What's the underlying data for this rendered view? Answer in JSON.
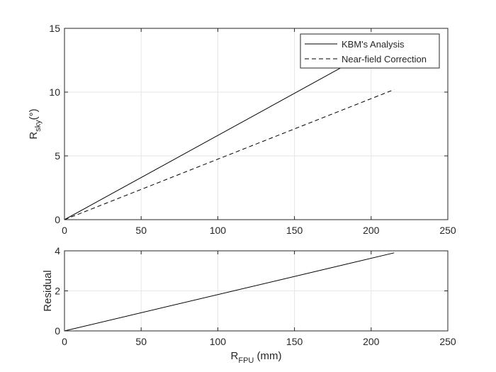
{
  "chart_data": [
    {
      "type": "line",
      "xlim": [
        0,
        250
      ],
      "ylim": [
        0,
        15
      ],
      "xticks": [
        0,
        50,
        100,
        150,
        200,
        250
      ],
      "yticks": [
        0,
        5,
        10,
        15
      ],
      "grid": true,
      "xlabel": "",
      "ylabel": {
        "main": "R",
        "sub": "sky",
        "unit": "(°)"
      },
      "legend": {
        "placement": "top-right"
      },
      "series": [
        {
          "name": "KBM's Analysis",
          "style": "solid",
          "x": [
            0,
            215
          ],
          "y": [
            0,
            14.2
          ]
        },
        {
          "name": "Near-field Correction",
          "style": "dashed",
          "x": [
            0,
            215
          ],
          "y": [
            0,
            10.2
          ]
        }
      ]
    },
    {
      "type": "line",
      "xlim": [
        0,
        250
      ],
      "ylim": [
        0,
        4
      ],
      "xticks": [
        0,
        50,
        100,
        150,
        200,
        250
      ],
      "yticks": [
        0,
        2,
        4
      ],
      "grid": true,
      "xlabel": {
        "main": "R",
        "sub": "FPU",
        "unit": " (mm)"
      },
      "ylabel": {
        "main": "Residual"
      },
      "series": [
        {
          "style": "solid",
          "x": [
            0,
            215
          ],
          "y": [
            0,
            3.9
          ]
        }
      ]
    }
  ],
  "colors": {
    "line": "#000000",
    "grid": "#e6e6e6",
    "axis": "#262626"
  }
}
